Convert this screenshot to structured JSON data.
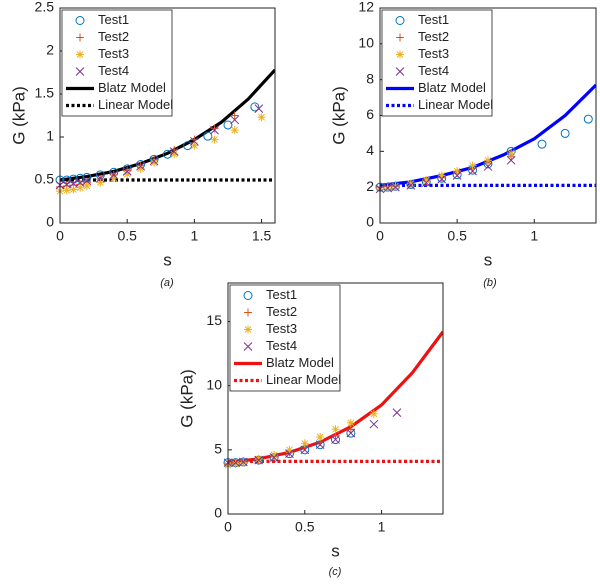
{
  "chart_data": [
    {
      "type": "scatter",
      "xlabel": "s",
      "ylabel": "G (kPa)",
      "caption": "(a)",
      "xlim": [
        0,
        1.6
      ],
      "ylim": [
        0,
        2.5
      ],
      "xticks": [
        0,
        0.5,
        1,
        1.5
      ],
      "yticks": [
        0,
        0.5,
        1,
        1.5,
        2,
        2.5
      ],
      "legend": "upper left",
      "series": [
        {
          "name": "Test1",
          "color": "#0072bd",
          "marker": "circle",
          "x": [
            0,
            0.05,
            0.1,
            0.15,
            0.2,
            0.3,
            0.4,
            0.5,
            0.6,
            0.7,
            0.8,
            0.95,
            1.1,
            1.25,
            1.45
          ],
          "values": [
            0.5,
            0.5,
            0.51,
            0.52,
            0.53,
            0.56,
            0.59,
            0.63,
            0.68,
            0.74,
            0.8,
            0.9,
            1.01,
            1.14,
            1.35
          ]
        },
        {
          "name": "Test2",
          "color": "#d95319",
          "marker": "plus",
          "x": [
            0,
            0.05,
            0.1,
            0.15,
            0.2,
            0.3,
            0.4,
            0.5,
            0.6,
            0.7,
            0.85,
            1.0,
            1.15,
            1.3
          ],
          "values": [
            0.42,
            0.43,
            0.44,
            0.45,
            0.47,
            0.51,
            0.56,
            0.61,
            0.67,
            0.74,
            0.85,
            0.97,
            1.1,
            1.25
          ]
        },
        {
          "name": "Test3",
          "color": "#edb120",
          "marker": "star",
          "x": [
            0,
            0.05,
            0.1,
            0.15,
            0.2,
            0.3,
            0.4,
            0.5,
            0.6,
            0.7,
            0.85,
            1.0,
            1.15,
            1.3,
            1.5
          ],
          "values": [
            0.37,
            0.38,
            0.39,
            0.41,
            0.43,
            0.47,
            0.52,
            0.57,
            0.63,
            0.7,
            0.8,
            0.9,
            0.97,
            1.08,
            1.23
          ]
        },
        {
          "name": "Test4",
          "color": "#7e2f8e",
          "marker": "cross",
          "x": [
            0,
            0.05,
            0.1,
            0.15,
            0.2,
            0.3,
            0.4,
            0.5,
            0.6,
            0.7,
            0.85,
            1.0,
            1.15,
            1.3,
            1.48
          ],
          "values": [
            0.44,
            0.45,
            0.46,
            0.47,
            0.49,
            0.52,
            0.56,
            0.6,
            0.66,
            0.72,
            0.83,
            0.95,
            1.08,
            1.2,
            1.33
          ]
        },
        {
          "name": "Blatz Model",
          "color": "#000000",
          "style": "solid",
          "x": [
            0,
            0.2,
            0.4,
            0.6,
            0.8,
            1.0,
            1.2,
            1.4,
            1.6
          ],
          "values": [
            0.5,
            0.54,
            0.6,
            0.69,
            0.81,
            0.97,
            1.17,
            1.44,
            1.78
          ]
        },
        {
          "name": "Linear Model",
          "color": "#000000",
          "style": "dotted",
          "x": [
            0,
            1.6
          ],
          "values": [
            0.5,
            0.5
          ]
        }
      ]
    },
    {
      "type": "scatter",
      "xlabel": "s",
      "ylabel": "G (kPa)",
      "caption": "(b)",
      "xlim": [
        0,
        1.4
      ],
      "ylim": [
        0,
        12
      ],
      "xticks": [
        0,
        0.5,
        1
      ],
      "yticks": [
        0,
        2,
        4,
        6,
        8,
        10,
        12
      ],
      "legend": "upper left",
      "series": [
        {
          "name": "Test1",
          "color": "#0072bd",
          "marker": "circle",
          "x": [
            0,
            0.05,
            0.1,
            0.2,
            0.3,
            0.4,
            0.5,
            0.6,
            0.7,
            0.85,
            1.05,
            1.2,
            1.35
          ],
          "values": [
            2.0,
            2.0,
            2.05,
            2.15,
            2.3,
            2.5,
            2.7,
            2.95,
            3.3,
            4.0,
            4.4,
            5.0,
            5.8
          ]
        },
        {
          "name": "Test2",
          "color": "#d95319",
          "marker": "plus",
          "x": [
            0,
            0.05,
            0.1,
            0.2,
            0.3,
            0.4,
            0.5,
            0.6,
            0.7,
            0.85
          ],
          "values": [
            2.0,
            2.05,
            2.1,
            2.2,
            2.35,
            2.55,
            2.8,
            3.05,
            3.35,
            3.7
          ]
        },
        {
          "name": "Test3",
          "color": "#edb120",
          "marker": "star",
          "x": [
            0,
            0.05,
            0.1,
            0.2,
            0.3,
            0.4,
            0.5,
            0.6,
            0.7,
            0.85
          ],
          "values": [
            1.9,
            1.95,
            2.05,
            2.2,
            2.4,
            2.65,
            2.9,
            3.2,
            3.5,
            3.9
          ]
        },
        {
          "name": "Test4",
          "color": "#7e2f8e",
          "marker": "cross",
          "x": [
            0,
            0.05,
            0.1,
            0.2,
            0.3,
            0.4,
            0.5,
            0.6,
            0.7,
            0.85
          ],
          "values": [
            1.9,
            1.95,
            2.0,
            2.1,
            2.25,
            2.45,
            2.65,
            2.9,
            3.15,
            3.5
          ]
        },
        {
          "name": "Blatz Model",
          "color": "#0000ff",
          "style": "solid",
          "x": [
            0,
            0.2,
            0.4,
            0.6,
            0.8,
            1.0,
            1.2,
            1.4
          ],
          "values": [
            2.1,
            2.3,
            2.65,
            3.1,
            3.8,
            4.7,
            6.0,
            7.7
          ]
        },
        {
          "name": "Linear Model",
          "color": "#0000ff",
          "style": "dotted",
          "x": [
            0,
            1.4
          ],
          "values": [
            2.1,
            2.1
          ]
        }
      ]
    },
    {
      "type": "scatter",
      "xlabel": "s",
      "ylabel": "G (kPa)",
      "caption": "(c)",
      "xlim": [
        0,
        1.4
      ],
      "ylim": [
        0,
        18
      ],
      "xticks": [
        0,
        0.5,
        1
      ],
      "yticks": [
        0,
        5,
        10,
        15
      ],
      "legend": "upper left",
      "series": [
        {
          "name": "Test1",
          "color": "#0072bd",
          "marker": "circle",
          "x": [
            0,
            0.05,
            0.1,
            0.2,
            0.3,
            0.4,
            0.5,
            0.6,
            0.7,
            0.8
          ],
          "values": [
            4.0,
            4.0,
            4.05,
            4.2,
            4.4,
            4.7,
            5.0,
            5.4,
            5.8,
            6.3
          ]
        },
        {
          "name": "Test2",
          "color": "#d95319",
          "marker": "plus",
          "x": [
            0,
            0.05,
            0.1,
            0.2,
            0.3,
            0.4,
            0.5,
            0.6,
            0.7,
            0.8
          ],
          "values": [
            3.9,
            4.0,
            4.05,
            4.25,
            4.5,
            4.8,
            5.2,
            5.6,
            6.1,
            6.6
          ]
        },
        {
          "name": "Test3",
          "color": "#edb120",
          "marker": "star",
          "x": [
            0,
            0.05,
            0.1,
            0.2,
            0.3,
            0.4,
            0.5,
            0.6,
            0.7,
            0.8,
            0.95
          ],
          "values": [
            3.8,
            3.9,
            4.0,
            4.3,
            4.6,
            5.0,
            5.5,
            6.0,
            6.6,
            7.1,
            7.8
          ]
        },
        {
          "name": "Test4",
          "color": "#7e2f8e",
          "marker": "cross",
          "x": [
            0,
            0.05,
            0.1,
            0.2,
            0.3,
            0.4,
            0.5,
            0.6,
            0.7,
            0.8,
            0.95,
            1.1
          ],
          "values": [
            4.0,
            4.0,
            4.05,
            4.2,
            4.4,
            4.7,
            5.0,
            5.4,
            5.8,
            6.3,
            7.0,
            7.9
          ]
        },
        {
          "name": "Blatz Model",
          "color": "#ee1111",
          "style": "solid",
          "x": [
            0,
            0.2,
            0.4,
            0.6,
            0.8,
            1.0,
            1.2,
            1.4
          ],
          "values": [
            4.0,
            4.3,
            4.8,
            5.6,
            6.8,
            8.5,
            11.0,
            14.2
          ]
        },
        {
          "name": "Linear Model",
          "color": "#ee1111",
          "style": "dotted",
          "x": [
            0,
            1.4
          ],
          "values": [
            4.1,
            4.1
          ]
        }
      ]
    }
  ]
}
